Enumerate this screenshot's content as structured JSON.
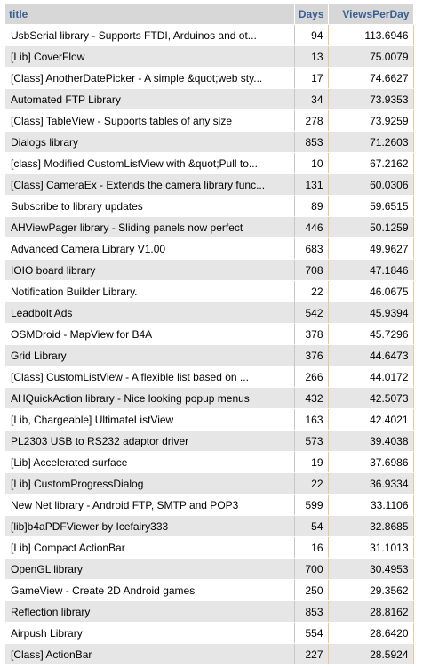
{
  "table": {
    "columns": [
      "title",
      "Days",
      "ViewsPerDay"
    ],
    "rows": [
      {
        "title": "UsbSerial library - Supports FTDI, Arduinos and ot...",
        "days": "94",
        "vpd": "113.6946"
      },
      {
        "title": "[Lib] CoverFlow",
        "days": "13",
        "vpd": "75.0079"
      },
      {
        "title": "[Class] AnotherDatePicker - A simple &quot;web sty...",
        "days": "17",
        "vpd": "74.6627"
      },
      {
        "title": "Automated FTP Library",
        "days": "34",
        "vpd": "73.9353"
      },
      {
        "title": "[Class] TableView - Supports tables of any size",
        "days": "278",
        "vpd": "73.9259"
      },
      {
        "title": "Dialogs library",
        "days": "853",
        "vpd": "71.2603"
      },
      {
        "title": "[class] Modified CustomListView with &quot;Pull to...",
        "days": "10",
        "vpd": "67.2162"
      },
      {
        "title": "[Class] CameraEx - Extends the camera library func...",
        "days": "131",
        "vpd": "60.0306"
      },
      {
        "title": "Subscribe to library updates",
        "days": "89",
        "vpd": "59.6515"
      },
      {
        "title": "AHViewPager library - Sliding panels now perfect",
        "days": "446",
        "vpd": "50.1259"
      },
      {
        "title": "Advanced Camera Library V1.00",
        "days": "683",
        "vpd": "49.9627"
      },
      {
        "title": "IOIO board library",
        "days": "708",
        "vpd": "47.1846"
      },
      {
        "title": "Notification Builder Library.",
        "days": "22",
        "vpd": "46.0675"
      },
      {
        "title": "Leadbolt Ads",
        "days": "542",
        "vpd": "45.9394"
      },
      {
        "title": "OSMDroid - MapView for B4A",
        "days": "378",
        "vpd": "45.7296"
      },
      {
        "title": "Grid Library",
        "days": "376",
        "vpd": "44.6473"
      },
      {
        "title": "[Class] CustomListView - A flexible list based on ...",
        "days": "266",
        "vpd": "44.0172"
      },
      {
        "title": "AHQuickAction library - Nice looking popup menus",
        "days": "432",
        "vpd": "42.5073"
      },
      {
        "title": "[Lib, Chargeable] UltimateListView",
        "days": "163",
        "vpd": "42.4021"
      },
      {
        "title": "PL2303 USB to RS232 adaptor driver",
        "days": "573",
        "vpd": "39.4038"
      },
      {
        "title": "[Lib] Accelerated surface",
        "days": "19",
        "vpd": "37.6986"
      },
      {
        "title": "[Lib] CustomProgressDialog",
        "days": "22",
        "vpd": "36.9334"
      },
      {
        "title": "New Net library - Android FTP, SMTP and POP3",
        "days": "599",
        "vpd": "33.1106"
      },
      {
        "title": "[lib]b4aPDFViewer by Icefairy333",
        "days": "54",
        "vpd": "32.8685"
      },
      {
        "title": "[Lib] Compact ActionBar",
        "days": "16",
        "vpd": "31.1013"
      },
      {
        "title": "OpenGL library",
        "days": "700",
        "vpd": "30.4953"
      },
      {
        "title": "GameView - Create 2D Android games",
        "days": "250",
        "vpd": "29.3562"
      },
      {
        "title": "Reflection library",
        "days": "853",
        "vpd": "28.8162"
      },
      {
        "title": "Airpush Library",
        "days": "554",
        "vpd": "28.6420"
      },
      {
        "title": "[Class] ActionBar",
        "days": "227",
        "vpd": "28.5924"
      }
    ]
  },
  "colors": {
    "header_bg": "#d7d7d7",
    "header_text": "#3a5f95",
    "row_alt_bg": "#e6e6e6",
    "numeric_border": "#e8c89a"
  }
}
